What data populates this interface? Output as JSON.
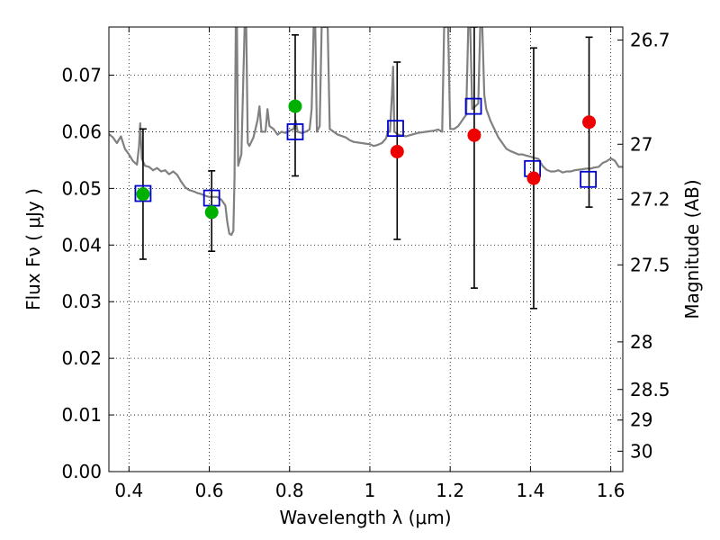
{
  "chart_data": {
    "type": "scatter",
    "xlabel": "Wavelength  λ (μm)",
    "ylabel": "Flux  Fν  ( μJy )",
    "y2label": "Magnitude (AB)",
    "xlim": [
      0.35,
      1.63
    ],
    "ylim": [
      0.0,
      0.0785
    ],
    "x_ticks": [
      0.4,
      0.6,
      0.8,
      1.0,
      1.2,
      1.4,
      1.6
    ],
    "x_tick_labels": [
      "0.4",
      "0.6",
      "0.8",
      "1",
      "1.2",
      "1.4",
      "1.6"
    ],
    "y_ticks": [
      0.0,
      0.01,
      0.02,
      0.03,
      0.04,
      0.05,
      0.06,
      0.07
    ],
    "y_tick_labels": [
      "0.00",
      "0.01",
      "0.02",
      "0.03",
      "0.04",
      "0.05",
      "0.06",
      "0.07"
    ],
    "y2_ticks": [
      {
        "label": "26.7",
        "flux": 0.0762
      },
      {
        "label": "27",
        "flux": 0.0578
      },
      {
        "label": "27.2",
        "flux": 0.0481
      },
      {
        "label": "27.5",
        "flux": 0.0365
      },
      {
        "label": "28",
        "flux": 0.0229
      },
      {
        "label": "28.5",
        "flux": 0.0145
      },
      {
        "label": "29",
        "flux": 0.0091
      },
      {
        "label": "30",
        "flux": 0.0036
      }
    ],
    "grid": true,
    "colors": {
      "spectrum": "#808080",
      "model_box": "#0000cc",
      "green_point": "#00b000",
      "red_point": "#ee0000",
      "error_bar": "#000000"
    },
    "series": [
      {
        "marker": "circle",
        "color": "green",
        "points": [
          {
            "x": 0.435,
            "y": 0.049,
            "ylo": 0.0375,
            "yhi": 0.0605
          },
          {
            "x": 0.606,
            "y": 0.0458,
            "ylo": 0.0389,
            "yhi": 0.0531
          },
          {
            "x": 0.814,
            "y": 0.0645,
            "ylo": 0.0522,
            "yhi": 0.0771
          }
        ]
      },
      {
        "marker": "circle",
        "color": "red",
        "points": [
          {
            "x": 1.068,
            "y": 0.0565,
            "ylo": 0.041,
            "yhi": 0.0723
          },
          {
            "x": 1.26,
            "y": 0.0594,
            "ylo": 0.0324,
            "yhi": 0.0785
          },
          {
            "x": 1.408,
            "y": 0.0518,
            "ylo": 0.0288,
            "yhi": 0.0748
          },
          {
            "x": 1.546,
            "y": 0.0617,
            "ylo": 0.0467,
            "yhi": 0.0767
          }
        ]
      },
      {
        "marker": "square",
        "color": "blue",
        "points": [
          {
            "x": 0.435,
            "y": 0.0491
          },
          {
            "x": 0.606,
            "y": 0.0483
          },
          {
            "x": 0.814,
            "y": 0.06
          },
          {
            "x": 1.064,
            "y": 0.0606
          },
          {
            "x": 1.258,
            "y": 0.0645
          },
          {
            "x": 1.405,
            "y": 0.0535
          },
          {
            "x": 1.544,
            "y": 0.0516
          }
        ]
      },
      {
        "type": "line",
        "color": "gray",
        "points": [
          [
            0.35,
            0.0596
          ],
          [
            0.36,
            0.059
          ],
          [
            0.37,
            0.058
          ],
          [
            0.38,
            0.0592
          ],
          [
            0.39,
            0.057
          ],
          [
            0.4,
            0.056
          ],
          [
            0.41,
            0.0548
          ],
          [
            0.42,
            0.0542
          ],
          [
            0.425,
            0.0575
          ],
          [
            0.428,
            0.0615
          ],
          [
            0.432,
            0.0552
          ],
          [
            0.44,
            0.054
          ],
          [
            0.45,
            0.0538
          ],
          [
            0.46,
            0.0532
          ],
          [
            0.47,
            0.0536
          ],
          [
            0.48,
            0.053
          ],
          [
            0.49,
            0.0532
          ],
          [
            0.5,
            0.0525
          ],
          [
            0.51,
            0.053
          ],
          [
            0.52,
            0.0524
          ],
          [
            0.53,
            0.0512
          ],
          [
            0.54,
            0.0502
          ],
          [
            0.55,
            0.0497
          ],
          [
            0.56,
            0.0495
          ],
          [
            0.57,
            0.0492
          ],
          [
            0.58,
            0.049
          ],
          [
            0.59,
            0.0487
          ],
          [
            0.6,
            0.0485
          ],
          [
            0.62,
            0.0485
          ],
          [
            0.63,
            0.048
          ],
          [
            0.64,
            0.047
          ],
          [
            0.645,
            0.044
          ],
          [
            0.65,
            0.042
          ],
          [
            0.655,
            0.0418
          ],
          [
            0.66,
            0.0425
          ],
          [
            0.663,
            0.052
          ],
          [
            0.666,
            0.0785
          ],
          [
            0.669,
            0.0785
          ],
          [
            0.672,
            0.054
          ],
          [
            0.68,
            0.056
          ],
          [
            0.688,
            0.0785
          ],
          [
            0.692,
            0.0785
          ],
          [
            0.696,
            0.058
          ],
          [
            0.7,
            0.0575
          ],
          [
            0.71,
            0.059
          ],
          [
            0.72,
            0.062
          ],
          [
            0.725,
            0.0645
          ],
          [
            0.73,
            0.06
          ],
          [
            0.74,
            0.06
          ],
          [
            0.745,
            0.064
          ],
          [
            0.75,
            0.061
          ],
          [
            0.76,
            0.0605
          ],
          [
            0.77,
            0.0595
          ],
          [
            0.78,
            0.06
          ],
          [
            0.79,
            0.0598
          ],
          [
            0.8,
            0.0602
          ],
          [
            0.81,
            0.0605
          ],
          [
            0.815,
            0.062
          ],
          [
            0.82,
            0.06
          ],
          [
            0.83,
            0.0598
          ],
          [
            0.84,
            0.06
          ],
          [
            0.85,
            0.0604
          ],
          [
            0.855,
            0.064
          ],
          [
            0.86,
            0.0785
          ],
          [
            0.864,
            0.0785
          ],
          [
            0.868,
            0.06
          ],
          [
            0.875,
            0.061
          ],
          [
            0.88,
            0.0785
          ],
          [
            0.885,
            0.0785
          ],
          [
            0.89,
            0.0785
          ],
          [
            0.895,
            0.0785
          ],
          [
            0.9,
            0.0605
          ],
          [
            0.92,
            0.0595
          ],
          [
            0.94,
            0.059
          ],
          [
            0.95,
            0.0585
          ],
          [
            0.96,
            0.0582
          ],
          [
            0.98,
            0.058
          ],
          [
            1.0,
            0.0578
          ],
          [
            1.01,
            0.0575
          ],
          [
            1.02,
            0.0577
          ],
          [
            1.03,
            0.058
          ],
          [
            1.04,
            0.0588
          ],
          [
            1.045,
            0.06
          ],
          [
            1.05,
            0.06
          ],
          [
            1.055,
            0.0665
          ],
          [
            1.058,
            0.0715
          ],
          [
            1.061,
            0.06
          ],
          [
            1.07,
            0.0595
          ],
          [
            1.09,
            0.0592
          ],
          [
            1.1,
            0.0594
          ],
          [
            1.12,
            0.0598
          ],
          [
            1.14,
            0.06
          ],
          [
            1.16,
            0.0602
          ],
          [
            1.17,
            0.0604
          ],
          [
            1.18,
            0.06
          ],
          [
            1.185,
            0.0785
          ],
          [
            1.19,
            0.0785
          ],
          [
            1.195,
            0.0785
          ],
          [
            1.2,
            0.0605
          ],
          [
            1.21,
            0.0605
          ],
          [
            1.22,
            0.061
          ],
          [
            1.24,
            0.063
          ],
          [
            1.245,
            0.0785
          ],
          [
            1.25,
            0.0785
          ],
          [
            1.255,
            0.064
          ],
          [
            1.27,
            0.065
          ],
          [
            1.275,
            0.0785
          ],
          [
            1.28,
            0.0785
          ],
          [
            1.285,
            0.0665
          ],
          [
            1.29,
            0.064
          ],
          [
            1.3,
            0.062
          ],
          [
            1.31,
            0.0605
          ],
          [
            1.32,
            0.059
          ],
          [
            1.33,
            0.058
          ],
          [
            1.34,
            0.057
          ],
          [
            1.35,
            0.0566
          ],
          [
            1.36,
            0.0563
          ],
          [
            1.37,
            0.056
          ],
          [
            1.38,
            0.056
          ],
          [
            1.39,
            0.0558
          ],
          [
            1.4,
            0.0556
          ],
          [
            1.41,
            0.0554
          ],
          [
            1.42,
            0.0552
          ],
          [
            1.43,
            0.054
          ],
          [
            1.44,
            0.0533
          ],
          [
            1.45,
            0.053
          ],
          [
            1.46,
            0.053
          ],
          [
            1.47,
            0.0532
          ],
          [
            1.48,
            0.0528
          ],
          [
            1.49,
            0.053
          ],
          [
            1.5,
            0.053
          ],
          [
            1.51,
            0.0532
          ],
          [
            1.52,
            0.0533
          ],
          [
            1.53,
            0.0534
          ],
          [
            1.54,
            0.0535
          ],
          [
            1.55,
            0.0535
          ],
          [
            1.56,
            0.0537
          ],
          [
            1.57,
            0.0538
          ],
          [
            1.58,
            0.0545
          ],
          [
            1.59,
            0.0548
          ],
          [
            1.6,
            0.0553
          ],
          [
            1.61,
            0.0549
          ],
          [
            1.62,
            0.0538
          ],
          [
            1.63,
            0.0538
          ]
        ]
      }
    ]
  }
}
